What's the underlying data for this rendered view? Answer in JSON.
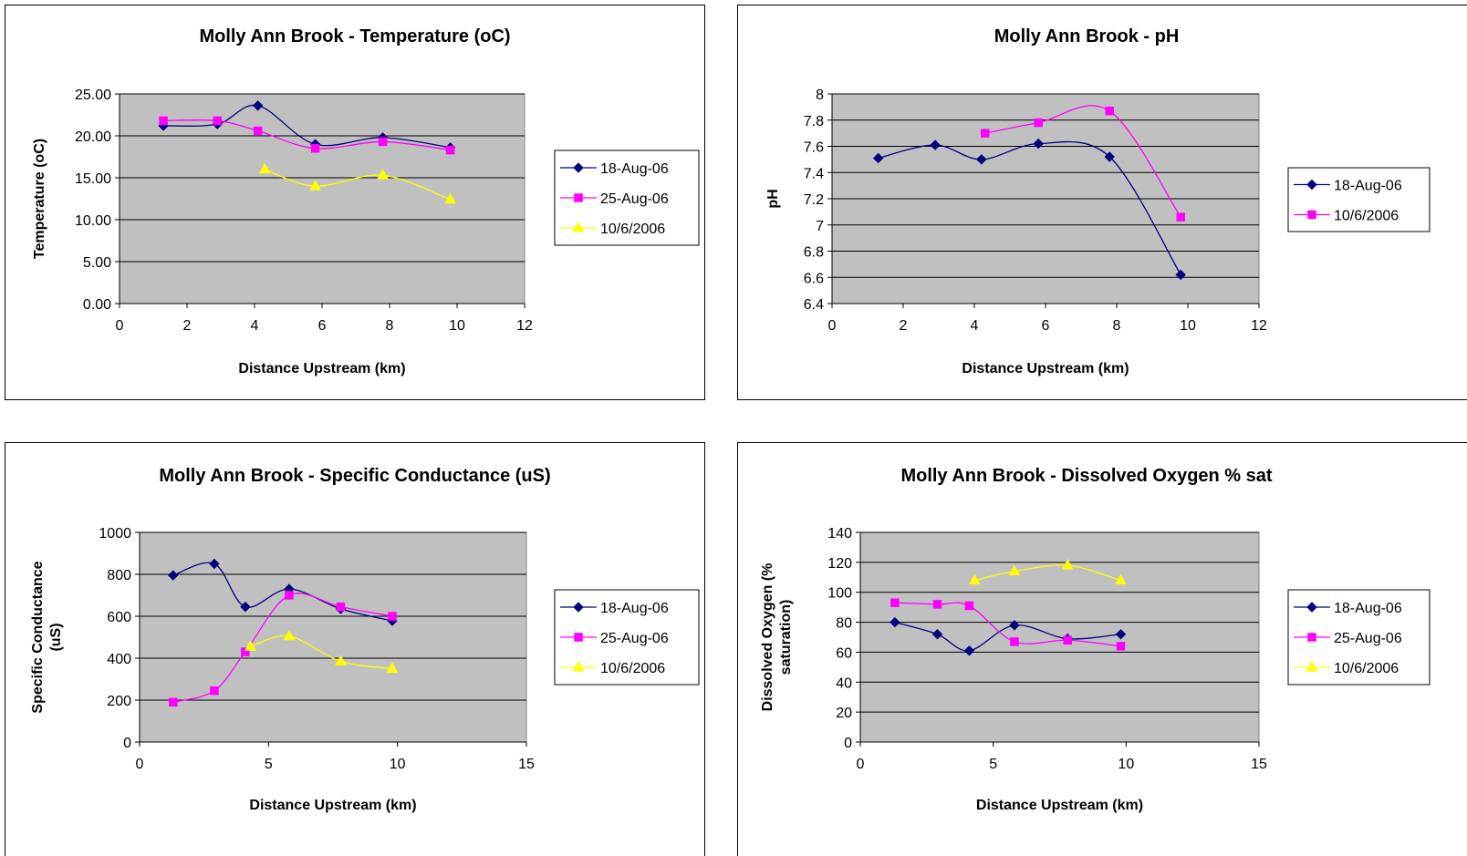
{
  "chart_data": [
    {
      "type": "line",
      "title": "Molly Ann Brook - Temperature (oC)",
      "xlabel": "Distance Upstream (km)",
      "ylabel": "Temperature (oC)",
      "xlim": [
        0,
        12
      ],
      "ylim": [
        0,
        25
      ],
      "xticks": [
        0,
        2,
        4,
        6,
        8,
        10,
        12
      ],
      "xtick_labels": [
        "0",
        "2",
        "4",
        "6",
        "8",
        "10",
        "12"
      ],
      "yticks": [
        0,
        5,
        10,
        15,
        20,
        25
      ],
      "ytick_labels": [
        "0.00",
        "5.00",
        "10.00",
        "15.00",
        "20.00",
        "25.00"
      ],
      "grid": true,
      "legend": "right",
      "series": [
        {
          "name": "18-Aug-06",
          "color": "#000080",
          "marker": "diamond",
          "x": [
            1.3,
            2.9,
            4.1,
            5.8,
            7.8,
            9.8
          ],
          "y": [
            21.2,
            21.4,
            23.6,
            19.0,
            19.8,
            18.6
          ]
        },
        {
          "name": "25-Aug-06",
          "color": "#ff00ff",
          "marker": "square",
          "x": [
            1.3,
            2.9,
            4.1,
            5.8,
            7.8,
            9.8
          ],
          "y": [
            21.8,
            21.8,
            20.6,
            18.5,
            19.3,
            18.3
          ]
        },
        {
          "name": "10/6/2006",
          "color": "#ffff00",
          "marker": "triangle",
          "x": [
            4.3,
            5.8,
            7.8,
            9.8
          ],
          "y": [
            16.0,
            14.0,
            15.3,
            12.4
          ]
        }
      ]
    },
    {
      "type": "line",
      "title": "Molly Ann Brook - pH",
      "xlabel": "Distance Upstream (km)",
      "ylabel": "pH",
      "xlim": [
        0,
        12
      ],
      "ylim": [
        6.4,
        8
      ],
      "xticks": [
        0,
        2,
        4,
        6,
        8,
        10,
        12
      ],
      "xtick_labels": [
        "0",
        "2",
        "4",
        "6",
        "8",
        "10",
        "12"
      ],
      "yticks": [
        6.4,
        6.6,
        6.8,
        7.0,
        7.2,
        7.4,
        7.6,
        7.8,
        8.0
      ],
      "ytick_labels": [
        "6.4",
        "6.6",
        "6.8",
        "7",
        "7.2",
        "7.4",
        "7.6",
        "7.8",
        "8"
      ],
      "grid": true,
      "legend": "right",
      "series": [
        {
          "name": "18-Aug-06",
          "color": "#000080",
          "marker": "diamond",
          "x": [
            1.3,
            2.9,
            4.2,
            5.8,
            7.8,
            9.8
          ],
          "y": [
            7.51,
            7.61,
            7.5,
            7.62,
            7.52,
            6.62
          ]
        },
        {
          "name": "10/6/2006",
          "color": "#ff00ff",
          "marker": "square",
          "x": [
            4.3,
            5.8,
            7.8,
            9.8
          ],
          "y": [
            7.7,
            7.78,
            7.87,
            7.06
          ]
        }
      ]
    },
    {
      "type": "line",
      "title": "Molly Ann Brook - Specific Conductance (uS)",
      "xlabel": "Distance Upstream (km)",
      "ylabel": "Specific Conductance (uS)",
      "ylabel_lines": [
        "Specific Conductance",
        "(uS)"
      ],
      "xlim": [
        0,
        15
      ],
      "ylim": [
        0,
        1000
      ],
      "xticks": [
        0,
        5,
        10,
        15
      ],
      "xtick_labels": [
        "0",
        "5",
        "10",
        "15"
      ],
      "yticks": [
        0,
        200,
        400,
        600,
        800,
        1000
      ],
      "ytick_labels": [
        "0",
        "200",
        "400",
        "600",
        "800",
        "1000"
      ],
      "grid": true,
      "legend": "right",
      "series": [
        {
          "name": "18-Aug-06",
          "color": "#000080",
          "marker": "diamond",
          "x": [
            1.3,
            2.9,
            4.1,
            5.8,
            7.8,
            9.8
          ],
          "y": [
            795,
            850,
            645,
            730,
            635,
            578
          ]
        },
        {
          "name": "25-Aug-06",
          "color": "#ff00ff",
          "marker": "square",
          "x": [
            1.3,
            2.9,
            4.1,
            5.8,
            7.8,
            9.8
          ],
          "y": [
            190,
            245,
            430,
            700,
            645,
            600
          ]
        },
        {
          "name": "10/6/2006",
          "color": "#ffff00",
          "marker": "triangle",
          "x": [
            4.3,
            5.8,
            7.8,
            9.8
          ],
          "y": [
            455,
            505,
            385,
            350
          ]
        }
      ]
    },
    {
      "type": "line",
      "title": "Molly Ann Brook - Dissolved Oxygen % sat",
      "xlabel": "Distance Upstream (km)",
      "ylabel": "Dissolved Oxygen (% saturation)",
      "ylabel_lines": [
        "Dissolved Oxygen (%",
        "saturation)"
      ],
      "xlim": [
        0,
        15
      ],
      "ylim": [
        0,
        140
      ],
      "xticks": [
        0,
        5,
        10,
        15
      ],
      "xtick_labels": [
        "0",
        "5",
        "10",
        "15"
      ],
      "yticks": [
        0,
        20,
        40,
        60,
        80,
        100,
        120,
        140
      ],
      "ytick_labels": [
        "0",
        "20",
        "40",
        "60",
        "80",
        "100",
        "120",
        "140"
      ],
      "grid": true,
      "legend": "right",
      "series": [
        {
          "name": "18-Aug-06",
          "color": "#000080",
          "marker": "diamond",
          "x": [
            1.3,
            2.9,
            4.1,
            5.8,
            7.8,
            9.8
          ],
          "y": [
            80,
            72,
            61,
            78,
            69,
            72
          ]
        },
        {
          "name": "25-Aug-06",
          "color": "#ff00ff",
          "marker": "square",
          "x": [
            1.3,
            2.9,
            4.1,
            5.8,
            7.8,
            9.8
          ],
          "y": [
            93,
            92,
            91,
            67,
            68,
            64
          ]
        },
        {
          "name": "10/6/2006",
          "color": "#ffff00",
          "marker": "triangle",
          "x": [
            4.3,
            5.8,
            7.8,
            9.8
          ],
          "y": [
            108,
            114,
            118,
            108
          ]
        }
      ]
    }
  ]
}
